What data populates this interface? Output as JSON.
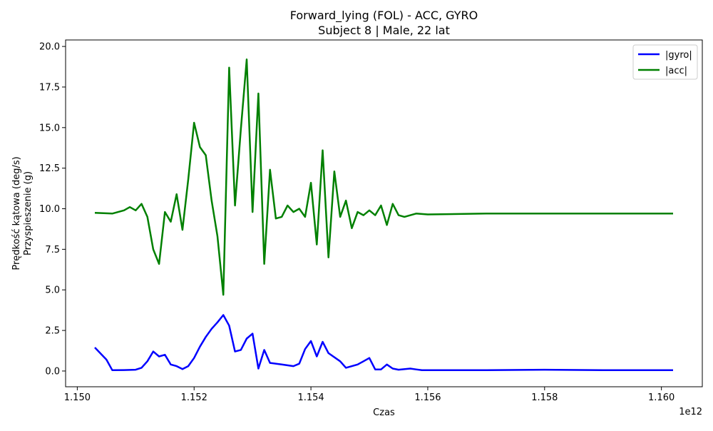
{
  "chart_data": {
    "type": "line",
    "title": "Forward_lying (FOL) - ACC, GYRO",
    "subtitle": "Subject 8 | Male, 22 lat",
    "xlabel": "Czas",
    "ylabel_line1": "Prędkość kątowa (deg/s)",
    "ylabel_line2": "Przyspieszenie (g)",
    "x_offset_label": "1e12",
    "xlim": [
      1.1498,
      1.1607
    ],
    "ylim": [
      -0.97,
      20.4
    ],
    "x_ticks": [
      1.15,
      1.152,
      1.154,
      1.156,
      1.158,
      1.16
    ],
    "x_tick_labels": [
      "1.150",
      "1.152",
      "1.154",
      "1.156",
      "1.158",
      "1.160"
    ],
    "y_ticks": [
      0.0,
      2.5,
      5.0,
      7.5,
      10.0,
      12.5,
      15.0,
      17.5,
      20.0
    ],
    "y_tick_labels": [
      "0.0",
      "2.5",
      "5.0",
      "7.5",
      "10.0",
      "12.5",
      "15.0",
      "17.5",
      "20.0"
    ],
    "grid": false,
    "legend_position": "top-right",
    "series": [
      {
        "name": "|gyro|",
        "color": "#0000ff",
        "x": [
          1.1503,
          1.1505,
          1.1506,
          1.1508,
          1.151,
          1.1511,
          1.1512,
          1.1513,
          1.1514,
          1.1515,
          1.1516,
          1.1517,
          1.1518,
          1.1519,
          1.152,
          1.1521,
          1.1522,
          1.1523,
          1.1524,
          1.1525,
          1.1526,
          1.1527,
          1.1528,
          1.1529,
          1.153,
          1.1531,
          1.1532,
          1.1533,
          1.1535,
          1.1537,
          1.1538,
          1.1539,
          1.154,
          1.1541,
          1.1542,
          1.1543,
          1.1545,
          1.1546,
          1.1548,
          1.1549,
          1.155,
          1.1551,
          1.1552,
          1.1553,
          1.1554,
          1.1555,
          1.1557,
          1.1558,
          1.1559,
          1.156,
          1.157,
          1.158,
          1.159,
          1.1602
        ],
        "y": [
          1.45,
          0.7,
          0.05,
          0.06,
          0.08,
          0.2,
          0.6,
          1.2,
          0.9,
          1.0,
          0.4,
          0.3,
          0.12,
          0.3,
          0.8,
          1.5,
          2.1,
          2.6,
          3.0,
          3.45,
          2.8,
          1.2,
          1.3,
          2.0,
          2.3,
          0.15,
          1.3,
          0.5,
          0.4,
          0.3,
          0.45,
          1.35,
          1.85,
          0.9,
          1.8,
          1.1,
          0.6,
          0.2,
          0.4,
          0.6,
          0.8,
          0.1,
          0.1,
          0.4,
          0.15,
          0.08,
          0.15,
          0.1,
          0.05,
          0.05,
          0.05,
          0.08,
          0.05,
          0.05
        ]
      },
      {
        "name": "|acc|",
        "color": "#008000",
        "x": [
          1.1503,
          1.1506,
          1.1508,
          1.1509,
          1.151,
          1.1511,
          1.1512,
          1.1513,
          1.1514,
          1.1515,
          1.1516,
          1.1517,
          1.1518,
          1.1519,
          1.152,
          1.1521,
          1.1522,
          1.1523,
          1.1524,
          1.1525,
          1.1526,
          1.1527,
          1.1528,
          1.1529,
          1.153,
          1.1531,
          1.1532,
          1.1533,
          1.1534,
          1.1535,
          1.1536,
          1.1537,
          1.1538,
          1.1539,
          1.154,
          1.1541,
          1.1542,
          1.1543,
          1.1544,
          1.1545,
          1.1546,
          1.1547,
          1.1548,
          1.1549,
          1.155,
          1.1551,
          1.1552,
          1.1553,
          1.1554,
          1.1555,
          1.1556,
          1.1558,
          1.156,
          1.157,
          1.158,
          1.159,
          1.1602
        ],
        "y": [
          9.75,
          9.7,
          9.9,
          10.1,
          9.9,
          10.3,
          9.5,
          7.5,
          6.6,
          9.8,
          9.2,
          10.9,
          8.7,
          11.8,
          15.3,
          13.8,
          13.3,
          10.5,
          8.3,
          4.7,
          18.7,
          10.2,
          14.9,
          19.2,
          9.8,
          17.1,
          6.6,
          12.4,
          9.4,
          9.5,
          10.2,
          9.8,
          10.0,
          9.5,
          11.6,
          7.8,
          13.6,
          7.0,
          12.3,
          9.5,
          10.5,
          8.8,
          9.8,
          9.6,
          9.9,
          9.6,
          10.2,
          9.0,
          10.3,
          9.6,
          9.5,
          9.7,
          9.65,
          9.7,
          9.7,
          9.7,
          9.7
        ]
      }
    ]
  }
}
